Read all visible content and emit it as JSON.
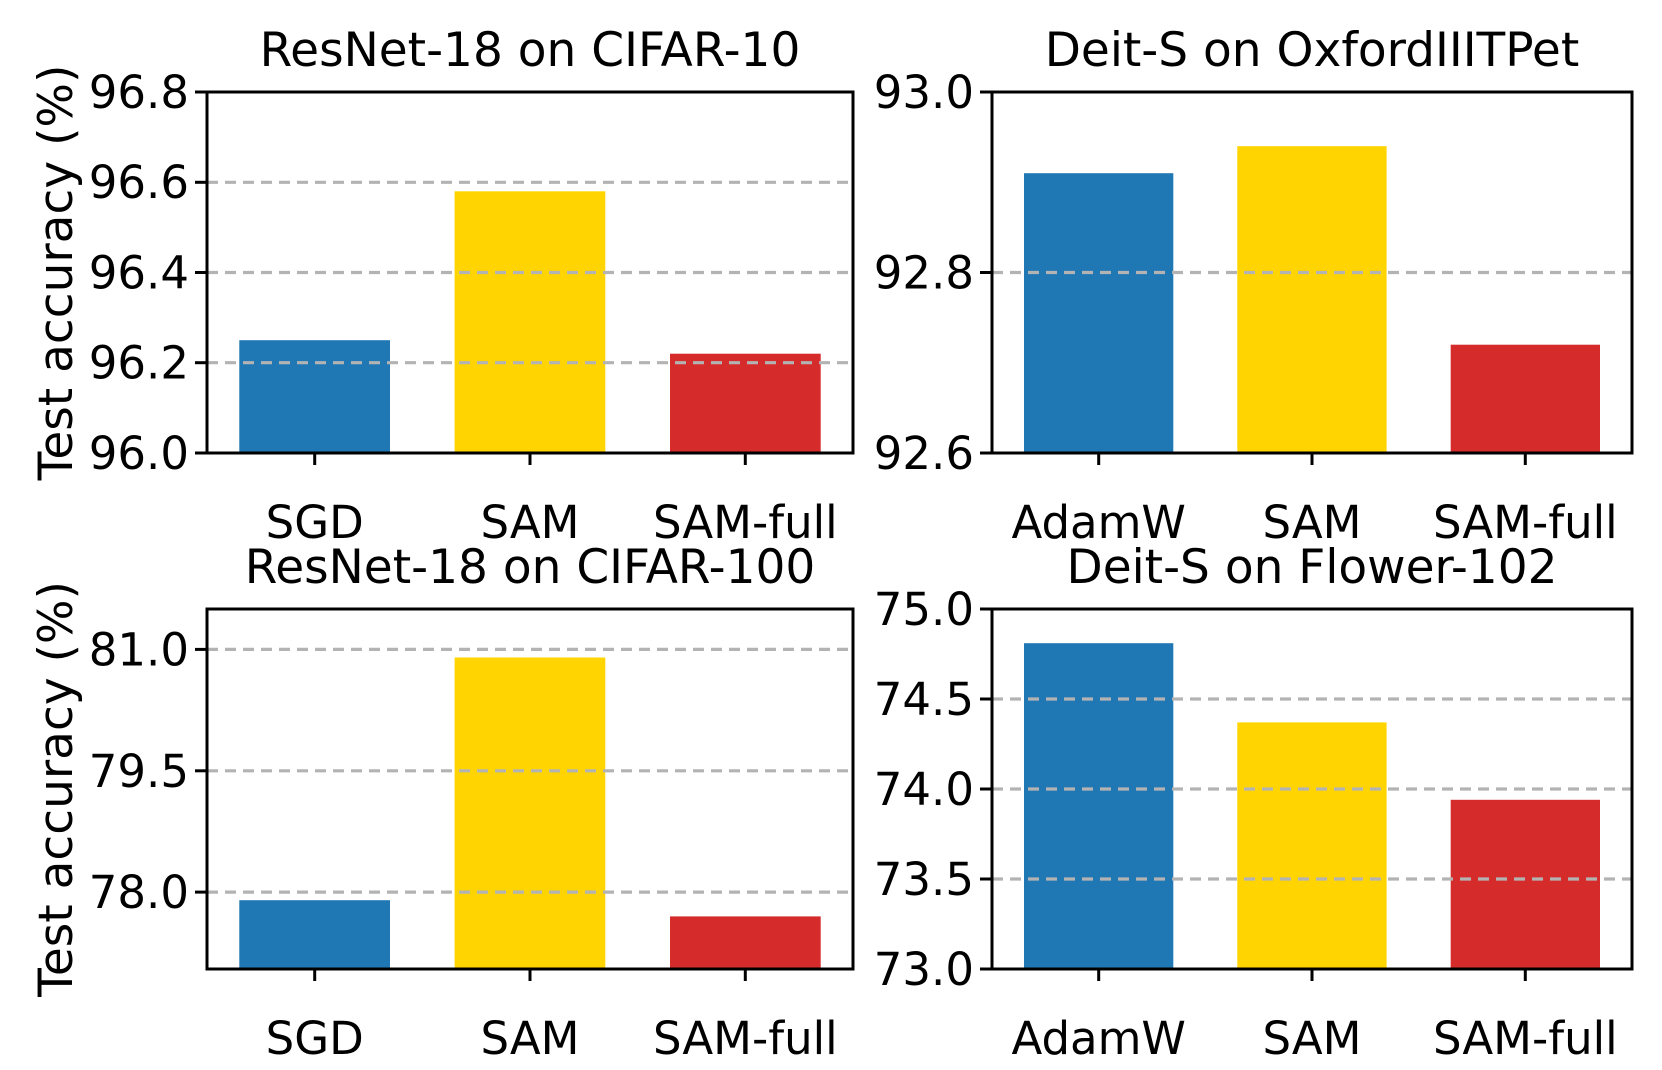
{
  "figure": {
    "background": "#ffffff",
    "colors": {
      "blue": "#1f77b4",
      "yellow": "#ffd400",
      "red": "#d62b2b",
      "grid": "#b3b3b3",
      "axis": "#000000"
    }
  },
  "chart_data": [
    {
      "type": "bar",
      "title": "ResNet-18 on CIFAR-10",
      "ylabel": "Test accuracy (%)",
      "xlabel": "",
      "categories": [
        "SGD",
        "SAM",
        "SAM-full"
      ],
      "values": [
        96.25,
        96.58,
        96.22
      ],
      "bar_colors": [
        "#1f77b4",
        "#ffd400",
        "#d62b2b"
      ],
      "ylim": [
        96.0,
        96.8
      ],
      "yticks": [
        96.0,
        96.2,
        96.4,
        96.6,
        96.8
      ],
      "ytick_labels": [
        "96.0",
        "96.2",
        "96.4",
        "96.6",
        "96.8"
      ],
      "grid": true,
      "grid_style": "dashed",
      "legend": null
    },
    {
      "type": "bar",
      "title": "Deit-S on OxfordIIITPet",
      "ylabel": "",
      "xlabel": "",
      "categories": [
        "AdamW",
        "SAM",
        "SAM-full"
      ],
      "values": [
        92.91,
        92.94,
        92.72
      ],
      "bar_colors": [
        "#1f77b4",
        "#ffd400",
        "#d62b2b"
      ],
      "ylim": [
        92.6,
        93.0
      ],
      "yticks": [
        92.6,
        92.8,
        93.0
      ],
      "ytick_labels": [
        "92.6",
        "92.8",
        "93.0"
      ],
      "grid": true,
      "grid_style": "dashed",
      "legend": null
    },
    {
      "type": "bar",
      "title": "ResNet-18 on CIFAR-100",
      "ylabel": "Test accuracy (%)",
      "xlabel": "",
      "categories": [
        "SGD",
        "SAM",
        "SAM-full"
      ],
      "values": [
        77.9,
        80.9,
        77.7
      ],
      "bar_colors": [
        "#1f77b4",
        "#ffd400",
        "#d62b2b"
      ],
      "ylim": [
        77.05,
        81.5
      ],
      "yticks": [
        78.0,
        79.5,
        81.0
      ],
      "ytick_labels": [
        "78.0",
        "79.5",
        "81.0"
      ],
      "grid": true,
      "grid_style": "dashed",
      "legend": null
    },
    {
      "type": "bar",
      "title": "Deit-S on Flower-102",
      "ylabel": "",
      "xlabel": "",
      "categories": [
        "AdamW",
        "SAM",
        "SAM-full"
      ],
      "values": [
        74.81,
        74.37,
        73.94
      ],
      "bar_colors": [
        "#1f77b4",
        "#ffd400",
        "#d62b2b"
      ],
      "ylim": [
        73.0,
        75.0
      ],
      "yticks": [
        73.0,
        73.5,
        74.0,
        74.5,
        75.0
      ],
      "ytick_labels": [
        "73.0",
        "73.5",
        "74.0",
        "74.5",
        "75.0"
      ],
      "grid": true,
      "grid_style": "dashed",
      "legend": null
    }
  ]
}
